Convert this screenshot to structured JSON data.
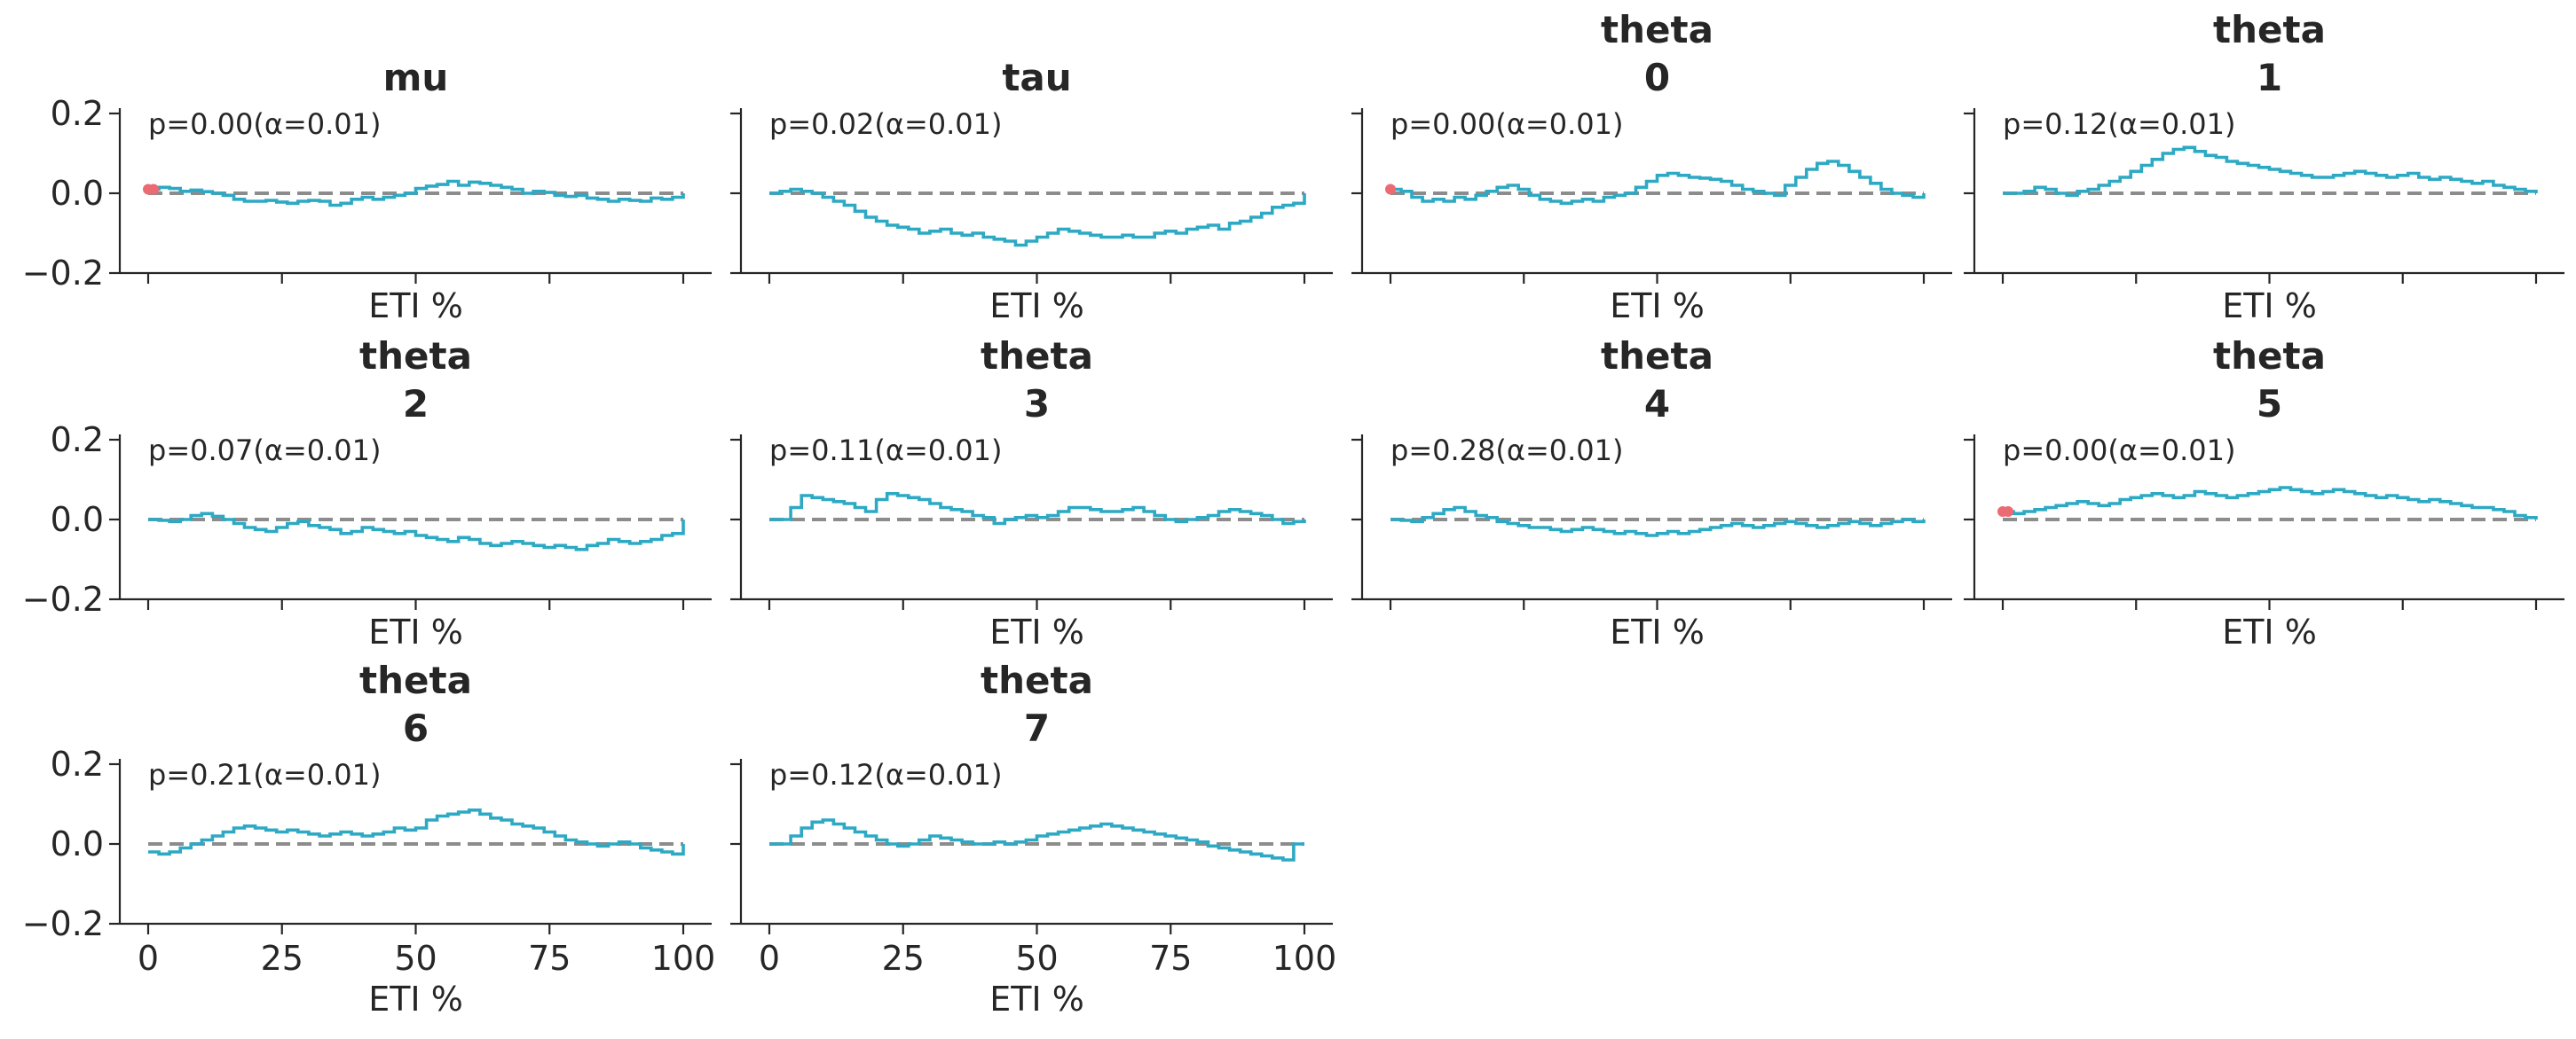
{
  "colors": {
    "curve": "#2ea9c4",
    "reference": "#8c8c8c",
    "outside_band": "#ec6a72",
    "text": "#262626"
  },
  "chart_data": [
    {
      "type": "line",
      "title": [
        "mu"
      ],
      "xlabel": "ETI %",
      "annotation": "p=0.00(α=0.01)",
      "xlim": [
        0,
        100
      ],
      "ylim": [
        -0.2,
        0.2
      ],
      "yticks": [
        "0.2",
        "0.0",
        "−0.2"
      ],
      "xticks": [],
      "reference_y": 0.0,
      "flagged_x": [
        0,
        1
      ],
      "x": [
        0,
        2,
        4,
        6,
        8,
        10,
        12,
        14,
        16,
        18,
        20,
        22,
        24,
        26,
        28,
        30,
        32,
        34,
        36,
        38,
        40,
        42,
        44,
        46,
        48,
        50,
        52,
        54,
        56,
        58,
        60,
        62,
        64,
        66,
        68,
        70,
        72,
        74,
        76,
        78,
        80,
        82,
        84,
        86,
        88,
        90,
        92,
        94,
        96,
        98,
        100
      ],
      "y": [
        0.01,
        0.015,
        0.012,
        0.005,
        0.008,
        0.004,
        0.0,
        -0.005,
        -0.015,
        -0.02,
        -0.02,
        -0.018,
        -0.022,
        -0.025,
        -0.02,
        -0.018,
        -0.02,
        -0.03,
        -0.025,
        -0.015,
        -0.01,
        -0.015,
        -0.01,
        -0.005,
        0.0,
        0.012,
        0.018,
        0.022,
        0.03,
        0.02,
        0.028,
        0.025,
        0.02,
        0.015,
        0.01,
        0.0,
        0.005,
        0.002,
        -0.005,
        -0.008,
        -0.005,
        -0.012,
        -0.015,
        -0.02,
        -0.015,
        -0.018,
        -0.02,
        -0.012,
        -0.015,
        -0.01,
        0.0
      ]
    },
    {
      "type": "line",
      "title": [
        "tau"
      ],
      "xlabel": "ETI %",
      "annotation": "p=0.02(α=0.01)",
      "xlim": [
        0,
        100
      ],
      "ylim": [
        -0.2,
        0.2
      ],
      "yticks": [],
      "xticks": [],
      "reference_y": 0.0,
      "flagged_x": [],
      "x": [
        0,
        2,
        4,
        6,
        8,
        10,
        12,
        14,
        16,
        18,
        20,
        22,
        24,
        26,
        28,
        30,
        32,
        34,
        36,
        38,
        40,
        42,
        44,
        46,
        48,
        50,
        52,
        54,
        56,
        58,
        60,
        62,
        64,
        66,
        68,
        70,
        72,
        74,
        76,
        78,
        80,
        82,
        84,
        86,
        88,
        90,
        92,
        94,
        96,
        98,
        100
      ],
      "y": [
        0.0,
        0.005,
        0.01,
        0.005,
        0.0,
        -0.01,
        -0.02,
        -0.03,
        -0.045,
        -0.06,
        -0.07,
        -0.08,
        -0.085,
        -0.09,
        -0.1,
        -0.095,
        -0.09,
        -0.1,
        -0.105,
        -0.1,
        -0.11,
        -0.115,
        -0.12,
        -0.13,
        -0.12,
        -0.11,
        -0.1,
        -0.09,
        -0.095,
        -0.1,
        -0.105,
        -0.11,
        -0.11,
        -0.105,
        -0.11,
        -0.11,
        -0.1,
        -0.095,
        -0.1,
        -0.09,
        -0.085,
        -0.08,
        -0.09,
        -0.075,
        -0.07,
        -0.06,
        -0.05,
        -0.035,
        -0.03,
        -0.025,
        0.0
      ]
    },
    {
      "type": "line",
      "title": [
        "theta",
        "0"
      ],
      "xlabel": "ETI %",
      "annotation": "p=0.00(α=0.01)",
      "xlim": [
        0,
        100
      ],
      "ylim": [
        -0.2,
        0.2
      ],
      "yticks": [],
      "xticks": [],
      "reference_y": 0.0,
      "flagged_x": [
        0
      ],
      "x": [
        0,
        2,
        4,
        6,
        8,
        10,
        12,
        14,
        16,
        18,
        20,
        22,
        24,
        26,
        28,
        30,
        32,
        34,
        36,
        38,
        40,
        42,
        44,
        46,
        48,
        50,
        52,
        54,
        56,
        58,
        60,
        62,
        64,
        66,
        68,
        70,
        72,
        74,
        76,
        78,
        80,
        82,
        84,
        86,
        88,
        90,
        92,
        94,
        96,
        98,
        100
      ],
      "y": [
        0.01,
        0.005,
        -0.01,
        -0.02,
        -0.015,
        -0.02,
        -0.01,
        -0.015,
        -0.005,
        0.005,
        0.015,
        0.02,
        0.01,
        -0.005,
        -0.015,
        -0.02,
        -0.025,
        -0.02,
        -0.015,
        -0.02,
        -0.01,
        -0.005,
        0.0,
        0.015,
        0.03,
        0.045,
        0.05,
        0.045,
        0.04,
        0.038,
        0.035,
        0.03,
        0.02,
        0.01,
        0.005,
        0.0,
        -0.005,
        0.02,
        0.04,
        0.06,
        0.075,
        0.08,
        0.07,
        0.055,
        0.04,
        0.025,
        0.01,
        0.0,
        -0.005,
        -0.01,
        0.0
      ]
    },
    {
      "type": "line",
      "title": [
        "theta",
        "1"
      ],
      "xlabel": "ETI %",
      "annotation": "p=0.12(α=0.01)",
      "xlim": [
        0,
        100
      ],
      "ylim": [
        -0.2,
        0.2
      ],
      "yticks": [],
      "xticks": [],
      "reference_y": 0.0,
      "flagged_x": [],
      "x": [
        0,
        2,
        4,
        6,
        8,
        10,
        12,
        14,
        16,
        18,
        20,
        22,
        24,
        26,
        28,
        30,
        32,
        34,
        36,
        38,
        40,
        42,
        44,
        46,
        48,
        50,
        52,
        54,
        56,
        58,
        60,
        62,
        64,
        66,
        68,
        70,
        72,
        74,
        76,
        78,
        80,
        82,
        84,
        86,
        88,
        90,
        92,
        94,
        96,
        98,
        100
      ],
      "y": [
        0.0,
        0.0,
        0.005,
        0.015,
        0.01,
        0.0,
        -0.005,
        0.005,
        0.01,
        0.02,
        0.03,
        0.04,
        0.055,
        0.07,
        0.085,
        0.1,
        0.11,
        0.115,
        0.105,
        0.095,
        0.09,
        0.08,
        0.075,
        0.07,
        0.065,
        0.06,
        0.055,
        0.05,
        0.045,
        0.04,
        0.04,
        0.045,
        0.05,
        0.055,
        0.05,
        0.045,
        0.04,
        0.045,
        0.05,
        0.04,
        0.035,
        0.04,
        0.035,
        0.03,
        0.025,
        0.03,
        0.02,
        0.015,
        0.01,
        0.005,
        0.0
      ]
    },
    {
      "type": "line",
      "title": [
        "theta",
        "2"
      ],
      "xlabel": "ETI %",
      "annotation": "p=0.07(α=0.01)",
      "xlim": [
        0,
        100
      ],
      "ylim": [
        -0.2,
        0.2
      ],
      "yticks": [
        "0.2",
        "0.0",
        "−0.2"
      ],
      "xticks": [],
      "reference_y": 0.0,
      "flagged_x": [],
      "x": [
        0,
        2,
        4,
        6,
        8,
        10,
        12,
        14,
        16,
        18,
        20,
        22,
        24,
        26,
        28,
        30,
        32,
        34,
        36,
        38,
        40,
        42,
        44,
        46,
        48,
        50,
        52,
        54,
        56,
        58,
        60,
        62,
        64,
        66,
        68,
        70,
        72,
        74,
        76,
        78,
        80,
        82,
        84,
        86,
        88,
        90,
        92,
        94,
        96,
        98,
        100
      ],
      "y": [
        0.0,
        -0.002,
        -0.005,
        0.0,
        0.01,
        0.015,
        0.008,
        0.0,
        -0.01,
        -0.02,
        -0.025,
        -0.03,
        -0.02,
        -0.01,
        -0.005,
        -0.015,
        -0.02,
        -0.025,
        -0.035,
        -0.03,
        -0.02,
        -0.025,
        -0.03,
        -0.035,
        -0.03,
        -0.04,
        -0.045,
        -0.05,
        -0.055,
        -0.045,
        -0.05,
        -0.06,
        -0.065,
        -0.06,
        -0.055,
        -0.06,
        -0.065,
        -0.07,
        -0.065,
        -0.07,
        -0.075,
        -0.065,
        -0.06,
        -0.05,
        -0.055,
        -0.06,
        -0.055,
        -0.05,
        -0.04,
        -0.035,
        0.0
      ]
    },
    {
      "type": "line",
      "title": [
        "theta",
        "3"
      ],
      "xlabel": "ETI %",
      "annotation": "p=0.11(α=0.01)",
      "xlim": [
        0,
        100
      ],
      "ylim": [
        -0.2,
        0.2
      ],
      "yticks": [],
      "xticks": [],
      "reference_y": 0.0,
      "flagged_x": [],
      "x": [
        0,
        2,
        4,
        6,
        8,
        10,
        12,
        14,
        16,
        18,
        20,
        22,
        24,
        26,
        28,
        30,
        32,
        34,
        36,
        38,
        40,
        42,
        44,
        46,
        48,
        50,
        52,
        54,
        56,
        58,
        60,
        62,
        64,
        66,
        68,
        70,
        72,
        74,
        76,
        78,
        80,
        82,
        84,
        86,
        88,
        90,
        92,
        94,
        96,
        98,
        100
      ],
      "y": [
        0.0,
        0.0,
        0.03,
        0.06,
        0.055,
        0.05,
        0.045,
        0.04,
        0.03,
        0.02,
        0.05,
        0.065,
        0.06,
        0.055,
        0.05,
        0.04,
        0.03,
        0.025,
        0.02,
        0.01,
        0.005,
        -0.01,
        0.0,
        0.005,
        0.01,
        0.005,
        0.01,
        0.02,
        0.03,
        0.03,
        0.025,
        0.02,
        0.02,
        0.025,
        0.03,
        0.02,
        0.01,
        0.0,
        -0.005,
        0.0,
        0.005,
        0.01,
        0.02,
        0.025,
        0.02,
        0.015,
        0.01,
        0.0,
        -0.01,
        -0.005,
        0.0
      ]
    },
    {
      "type": "line",
      "title": [
        "theta",
        "4"
      ],
      "xlabel": "ETI %",
      "annotation": "p=0.28(α=0.01)",
      "xlim": [
        0,
        100
      ],
      "ylim": [
        -0.2,
        0.2
      ],
      "yticks": [],
      "xticks": [],
      "reference_y": 0.0,
      "flagged_x": [],
      "x": [
        0,
        2,
        4,
        6,
        8,
        10,
        12,
        14,
        16,
        18,
        20,
        22,
        24,
        26,
        28,
        30,
        32,
        34,
        36,
        38,
        40,
        42,
        44,
        46,
        48,
        50,
        52,
        54,
        56,
        58,
        60,
        62,
        64,
        66,
        68,
        70,
        72,
        74,
        76,
        78,
        80,
        82,
        84,
        86,
        88,
        90,
        92,
        94,
        96,
        98,
        100
      ],
      "y": [
        0.0,
        -0.002,
        -0.005,
        0.005,
        0.015,
        0.025,
        0.03,
        0.02,
        0.01,
        0.005,
        -0.005,
        -0.01,
        -0.015,
        -0.02,
        -0.02,
        -0.025,
        -0.03,
        -0.025,
        -0.02,
        -0.025,
        -0.03,
        -0.035,
        -0.03,
        -0.035,
        -0.04,
        -0.035,
        -0.03,
        -0.035,
        -0.03,
        -0.025,
        -0.02,
        -0.015,
        -0.01,
        -0.015,
        -0.02,
        -0.015,
        -0.01,
        -0.005,
        -0.01,
        -0.015,
        -0.02,
        -0.015,
        -0.01,
        -0.005,
        -0.01,
        -0.015,
        -0.01,
        -0.005,
        0.0,
        -0.005,
        0.0
      ]
    },
    {
      "type": "line",
      "title": [
        "theta",
        "5"
      ],
      "xlabel": "ETI %",
      "annotation": "p=0.00(α=0.01)",
      "xlim": [
        0,
        100
      ],
      "ylim": [
        -0.2,
        0.2
      ],
      "yticks": [],
      "xticks": [],
      "reference_y": 0.0,
      "flagged_x": [
        0,
        1
      ],
      "x": [
        0,
        2,
        4,
        6,
        8,
        10,
        12,
        14,
        16,
        18,
        20,
        22,
        24,
        26,
        28,
        30,
        32,
        34,
        36,
        38,
        40,
        42,
        44,
        46,
        48,
        50,
        52,
        54,
        56,
        58,
        60,
        62,
        64,
        66,
        68,
        70,
        72,
        74,
        76,
        78,
        80,
        82,
        84,
        86,
        88,
        90,
        92,
        94,
        96,
        98,
        100
      ],
      "y": [
        0.02,
        0.015,
        0.02,
        0.025,
        0.03,
        0.035,
        0.04,
        0.045,
        0.04,
        0.035,
        0.04,
        0.05,
        0.055,
        0.06,
        0.065,
        0.06,
        0.055,
        0.06,
        0.07,
        0.065,
        0.06,
        0.055,
        0.06,
        0.065,
        0.07,
        0.075,
        0.08,
        0.075,
        0.07,
        0.065,
        0.07,
        0.075,
        0.07,
        0.065,
        0.06,
        0.055,
        0.06,
        0.055,
        0.05,
        0.045,
        0.05,
        0.045,
        0.04,
        0.035,
        0.03,
        0.03,
        0.025,
        0.02,
        0.01,
        0.005,
        0.0
      ]
    },
    {
      "type": "line",
      "title": [
        "theta",
        "6"
      ],
      "xlabel": "ETI %",
      "annotation": "p=0.21(α=0.01)",
      "xlim": [
        0,
        100
      ],
      "ylim": [
        -0.2,
        0.2
      ],
      "yticks": [
        "0.2",
        "0.0",
        "−0.2"
      ],
      "xticks": [
        "0",
        "25",
        "50",
        "75",
        "100"
      ],
      "reference_y": 0.0,
      "flagged_x": [],
      "x": [
        0,
        2,
        4,
        6,
        8,
        10,
        12,
        14,
        16,
        18,
        20,
        22,
        24,
        26,
        28,
        30,
        32,
        34,
        36,
        38,
        40,
        42,
        44,
        46,
        48,
        50,
        52,
        54,
        56,
        58,
        60,
        62,
        64,
        66,
        68,
        70,
        72,
        74,
        76,
        78,
        80,
        82,
        84,
        86,
        88,
        90,
        92,
        94,
        96,
        98,
        100
      ],
      "y": [
        -0.02,
        -0.025,
        -0.02,
        -0.01,
        0.0,
        0.01,
        0.02,
        0.03,
        0.04,
        0.045,
        0.04,
        0.035,
        0.03,
        0.035,
        0.03,
        0.025,
        0.02,
        0.025,
        0.03,
        0.025,
        0.02,
        0.025,
        0.03,
        0.04,
        0.035,
        0.04,
        0.06,
        0.07,
        0.075,
        0.08,
        0.085,
        0.075,
        0.065,
        0.06,
        0.05,
        0.045,
        0.04,
        0.03,
        0.02,
        0.01,
        0.005,
        0.0,
        -0.005,
        0.0,
        0.005,
        0.0,
        -0.01,
        -0.015,
        -0.02,
        -0.025,
        0.0
      ]
    },
    {
      "type": "line",
      "title": [
        "theta",
        "7"
      ],
      "xlabel": "ETI %",
      "annotation": "p=0.12(α=0.01)",
      "xlim": [
        0,
        100
      ],
      "ylim": [
        -0.2,
        0.2
      ],
      "yticks": [],
      "xticks": [
        "0",
        "25",
        "50",
        "75",
        "100"
      ],
      "reference_y": 0.0,
      "flagged_x": [],
      "x": [
        0,
        2,
        4,
        6,
        8,
        10,
        12,
        14,
        16,
        18,
        20,
        22,
        24,
        26,
        28,
        30,
        32,
        34,
        36,
        38,
        40,
        42,
        44,
        46,
        48,
        50,
        52,
        54,
        56,
        58,
        60,
        62,
        64,
        66,
        68,
        70,
        72,
        74,
        76,
        78,
        80,
        82,
        84,
        86,
        88,
        90,
        92,
        94,
        96,
        98,
        100
      ],
      "y": [
        0.0,
        0.0,
        0.02,
        0.04,
        0.055,
        0.06,
        0.05,
        0.04,
        0.03,
        0.02,
        0.01,
        0.0,
        -0.005,
        0.0,
        0.01,
        0.02,
        0.015,
        0.01,
        0.005,
        0.0,
        0.0,
        0.005,
        0.0,
        0.005,
        0.01,
        0.02,
        0.025,
        0.03,
        0.035,
        0.04,
        0.045,
        0.05,
        0.045,
        0.04,
        0.035,
        0.03,
        0.025,
        0.02,
        0.015,
        0.01,
        0.005,
        -0.005,
        -0.01,
        -0.015,
        -0.02,
        -0.025,
        -0.03,
        -0.035,
        -0.04,
        0.0,
        0.0
      ]
    }
  ]
}
